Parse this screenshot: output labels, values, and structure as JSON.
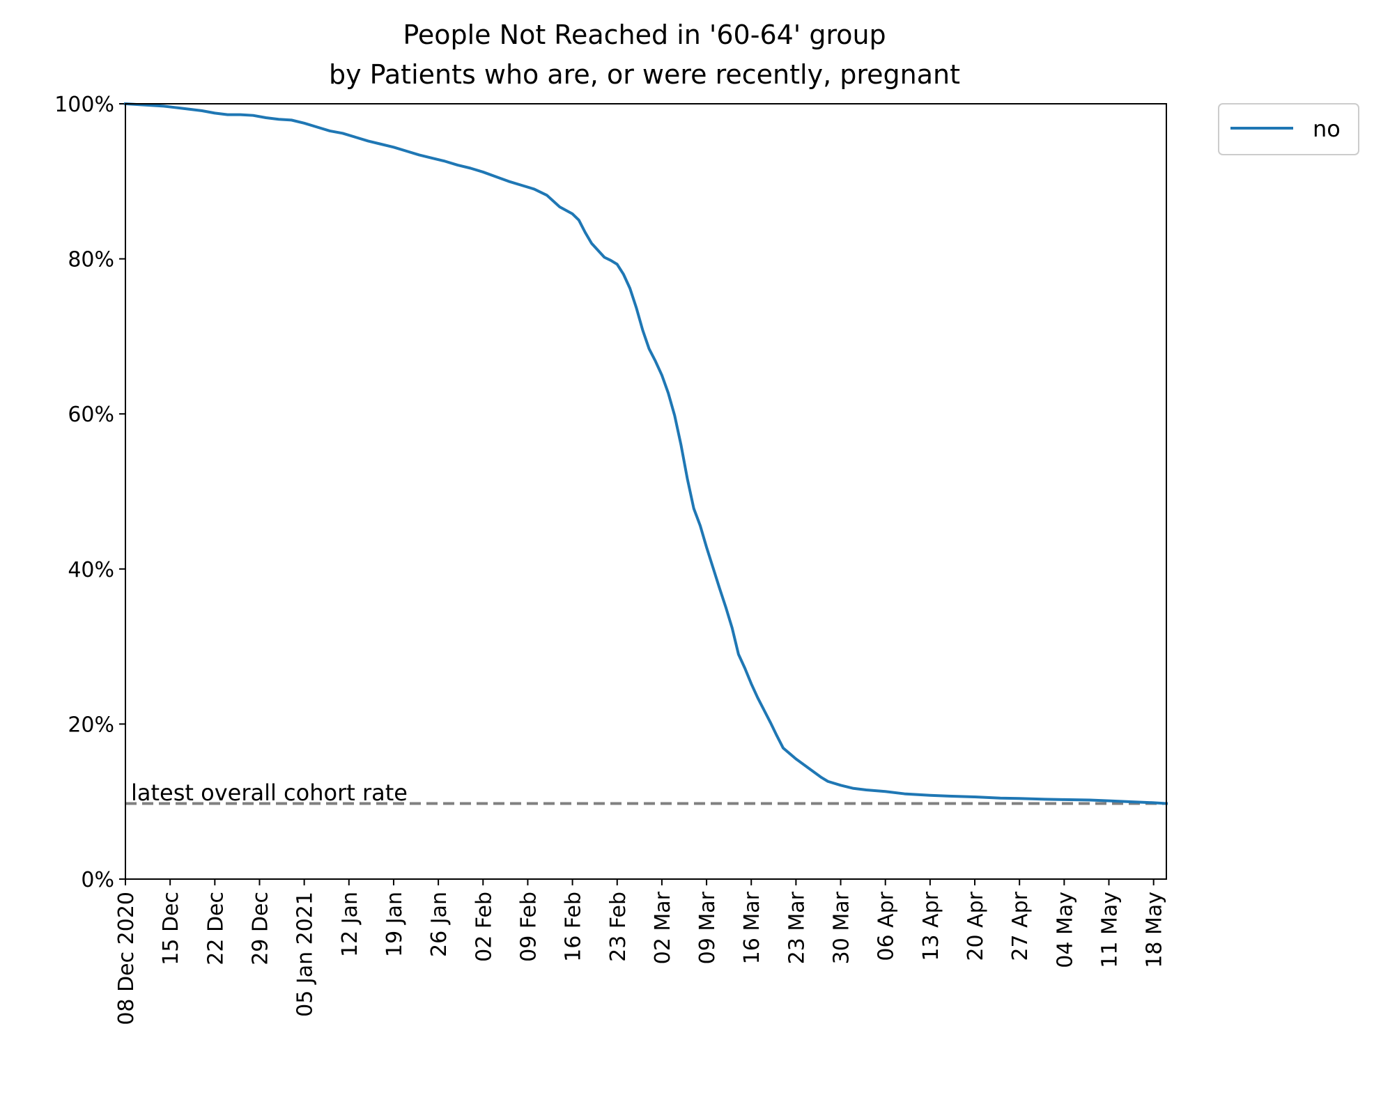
{
  "chart_data": {
    "type": "line",
    "title": "People Not Reached in '60-64' group",
    "subtitle": "by Patients who are, or were recently, pregnant",
    "xlabel": "",
    "ylabel": "",
    "x_tick_labels": [
      "08 Dec 2020",
      "15 Dec",
      "22 Dec",
      "29 Dec",
      "05 Jan 2021",
      "12 Jan",
      "19 Jan",
      "26 Jan",
      "02 Feb",
      "09 Feb",
      "16 Feb",
      "23 Feb",
      "02 Mar",
      "09 Mar",
      "16 Mar",
      "23 Mar",
      "30 Mar",
      "06 Apr",
      "13 Apr",
      "20 Apr",
      "27 Apr",
      "04 May",
      "11 May",
      "18 May"
    ],
    "x_ticks": [
      "2020-12-08",
      "2020-12-15",
      "2020-12-22",
      "2020-12-29",
      "2021-01-05",
      "2021-01-12",
      "2021-01-19",
      "2021-01-26",
      "2021-02-02",
      "2021-02-09",
      "2021-02-16",
      "2021-02-23",
      "2021-03-02",
      "2021-03-09",
      "2021-03-16",
      "2021-03-23",
      "2021-03-30",
      "2021-04-06",
      "2021-04-13",
      "2021-04-20",
      "2021-04-27",
      "2021-05-04",
      "2021-05-11",
      "2021-05-18"
    ],
    "xlim": [
      "2020-12-08",
      "2021-05-20"
    ],
    "y_tick_labels": [
      "0%",
      "20%",
      "40%",
      "60%",
      "80%",
      "100%"
    ],
    "y_ticks": [
      0,
      20,
      40,
      60,
      80,
      100
    ],
    "ylim": [
      0,
      100
    ],
    "grid": false,
    "legend_position": "outside-top-right",
    "series": [
      {
        "name": "no",
        "color": "#1f77b4",
        "points": [
          [
            "2020-12-08",
            100.0
          ],
          [
            "2020-12-10",
            99.9
          ],
          [
            "2020-12-12",
            99.8
          ],
          [
            "2020-12-14",
            99.7
          ],
          [
            "2020-12-16",
            99.5
          ],
          [
            "2020-12-18",
            99.3
          ],
          [
            "2020-12-20",
            99.1
          ],
          [
            "2020-12-22",
            98.8
          ],
          [
            "2020-12-24",
            98.6
          ],
          [
            "2020-12-26",
            98.6
          ],
          [
            "2020-12-28",
            98.5
          ],
          [
            "2020-12-30",
            98.2
          ],
          [
            "2021-01-01",
            98.0
          ],
          [
            "2021-01-03",
            97.9
          ],
          [
            "2021-01-05",
            97.5
          ],
          [
            "2021-01-07",
            97.0
          ],
          [
            "2021-01-09",
            96.5
          ],
          [
            "2021-01-11",
            96.2
          ],
          [
            "2021-01-13",
            95.7
          ],
          [
            "2021-01-15",
            95.2
          ],
          [
            "2021-01-17",
            94.8
          ],
          [
            "2021-01-19",
            94.4
          ],
          [
            "2021-01-21",
            93.9
          ],
          [
            "2021-01-23",
            93.4
          ],
          [
            "2021-01-25",
            93.0
          ],
          [
            "2021-01-27",
            92.6
          ],
          [
            "2021-01-29",
            92.1
          ],
          [
            "2021-01-31",
            91.7
          ],
          [
            "2021-02-02",
            91.2
          ],
          [
            "2021-02-04",
            90.6
          ],
          [
            "2021-02-06",
            90.0
          ],
          [
            "2021-02-08",
            89.5
          ],
          [
            "2021-02-10",
            89.0
          ],
          [
            "2021-02-12",
            88.2
          ],
          [
            "2021-02-14",
            86.7
          ],
          [
            "2021-02-16",
            85.8
          ],
          [
            "2021-02-17",
            85.0
          ],
          [
            "2021-02-18",
            83.4
          ],
          [
            "2021-02-19",
            82.0
          ],
          [
            "2021-02-21",
            80.2
          ],
          [
            "2021-02-22",
            79.8
          ],
          [
            "2021-02-23",
            79.3
          ],
          [
            "2021-02-24",
            78.0
          ],
          [
            "2021-02-25",
            76.2
          ],
          [
            "2021-02-26",
            73.7
          ],
          [
            "2021-02-27",
            70.8
          ],
          [
            "2021-02-28",
            68.4
          ],
          [
            "2021-03-01",
            66.8
          ],
          [
            "2021-03-02",
            65.0
          ],
          [
            "2021-03-03",
            62.7
          ],
          [
            "2021-03-04",
            59.8
          ],
          [
            "2021-03-05",
            56.0
          ],
          [
            "2021-03-06",
            51.6
          ],
          [
            "2021-03-07",
            47.8
          ],
          [
            "2021-03-08",
            45.6
          ],
          [
            "2021-03-09",
            42.8
          ],
          [
            "2021-03-10",
            40.2
          ],
          [
            "2021-03-11",
            37.6
          ],
          [
            "2021-03-12",
            35.1
          ],
          [
            "2021-03-13",
            32.4
          ],
          [
            "2021-03-14",
            29.0
          ],
          [
            "2021-03-15",
            27.2
          ],
          [
            "2021-03-16",
            25.2
          ],
          [
            "2021-03-17",
            23.4
          ],
          [
            "2021-03-18",
            21.8
          ],
          [
            "2021-03-19",
            20.2
          ],
          [
            "2021-03-20",
            18.5
          ],
          [
            "2021-03-21",
            16.9
          ],
          [
            "2021-03-22",
            16.2
          ],
          [
            "2021-03-23",
            15.5
          ],
          [
            "2021-03-25",
            14.3
          ],
          [
            "2021-03-27",
            13.1
          ],
          [
            "2021-03-28",
            12.6
          ],
          [
            "2021-03-30",
            12.1
          ],
          [
            "2021-04-01",
            11.7
          ],
          [
            "2021-04-03",
            11.5
          ],
          [
            "2021-04-06",
            11.3
          ],
          [
            "2021-04-09",
            11.0
          ],
          [
            "2021-04-13",
            10.8
          ],
          [
            "2021-04-16",
            10.7
          ],
          [
            "2021-04-20",
            10.6
          ],
          [
            "2021-04-24",
            10.45
          ],
          [
            "2021-04-27",
            10.4
          ],
          [
            "2021-05-01",
            10.3
          ],
          [
            "2021-05-04",
            10.25
          ],
          [
            "2021-05-08",
            10.2
          ],
          [
            "2021-05-11",
            10.1
          ],
          [
            "2021-05-15",
            9.95
          ],
          [
            "2021-05-18",
            9.85
          ],
          [
            "2021-05-20",
            9.75
          ]
        ]
      }
    ],
    "reference_line": {
      "label": "latest overall cohort rate",
      "value": 9.75,
      "style": "dashed",
      "color": "#808080"
    },
    "legend": {
      "entries": [
        "no"
      ]
    }
  }
}
